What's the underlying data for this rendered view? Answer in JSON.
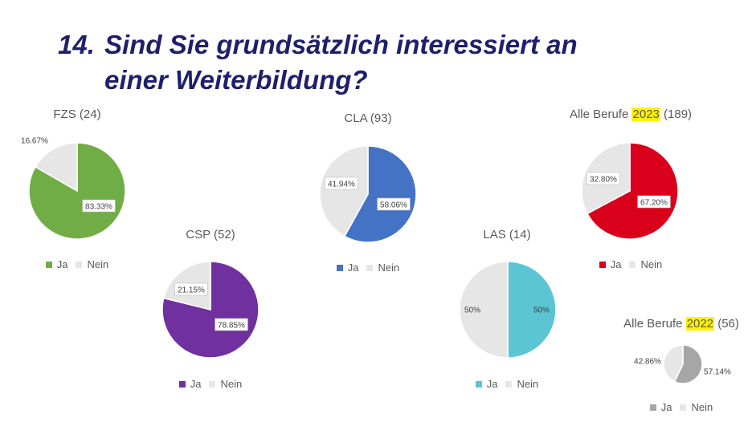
{
  "slide": {
    "title_number": "14.",
    "title_line1": "Sind Sie grundsätzlich interessiert an",
    "title_line2": "einer Weiterbildung?"
  },
  "colors": {
    "nein": "#e7e6e6",
    "fzs": "#70ad47",
    "csp": "#7030a0",
    "cla": "#4472c4",
    "las": "#5bc5d4",
    "alle2023": "#d9001b",
    "alle2022": "#a6a6a6",
    "highlight": "#fff200"
  },
  "chart_data": [
    {
      "id": "fzs",
      "type": "pie",
      "title": "FZS (24)",
      "title_prefix": "FZS (24)",
      "title_highlight": "",
      "title_suffix": "",
      "categories": [
        "Ja",
        "Nein"
      ],
      "values": [
        83.33,
        16.67
      ],
      "labels": [
        "83.33%",
        "16.67%"
      ],
      "legend": "bottom"
    },
    {
      "id": "csp",
      "type": "pie",
      "title": "CSP (52)",
      "title_prefix": "CSP (52)",
      "title_highlight": "",
      "title_suffix": "",
      "categories": [
        "Ja",
        "Nein"
      ],
      "values": [
        78.85,
        21.15
      ],
      "labels": [
        "78.85%",
        "21.15%"
      ],
      "legend": "bottom"
    },
    {
      "id": "cla",
      "type": "pie",
      "title": "CLA (93)",
      "title_prefix": "CLA (93)",
      "title_highlight": "",
      "title_suffix": "",
      "categories": [
        "Ja",
        "Nein"
      ],
      "values": [
        58.06,
        41.94
      ],
      "labels": [
        "58.06%",
        "41.94%"
      ],
      "legend": "bottom"
    },
    {
      "id": "las",
      "type": "pie",
      "title": "LAS  (14)",
      "title_prefix": "LAS  (14)",
      "title_highlight": "",
      "title_suffix": "",
      "categories": [
        "Ja",
        "Nein"
      ],
      "values": [
        50,
        50
      ],
      "labels": [
        "50%",
        "50%"
      ],
      "legend": "bottom"
    },
    {
      "id": "alle2023",
      "type": "pie",
      "title": "Alle Berufe 2023 (189)",
      "title_prefix": "Alle Berufe ",
      "title_highlight": "2023",
      "title_suffix": " (189)",
      "categories": [
        "Ja",
        "Nein"
      ],
      "values": [
        67.2,
        32.8
      ],
      "labels": [
        "67.20%",
        "32.80%"
      ],
      "legend": "bottom"
    },
    {
      "id": "alle2022",
      "type": "pie",
      "title": "Alle Berufe 2022 (56)",
      "title_prefix": "Alle Berufe ",
      "title_highlight": "2022",
      "title_suffix": " (56)",
      "categories": [
        "Ja",
        "Nein"
      ],
      "values": [
        57.14,
        42.86
      ],
      "labels": [
        "57.14%",
        "42.86%"
      ],
      "legend": "bottom"
    }
  ]
}
